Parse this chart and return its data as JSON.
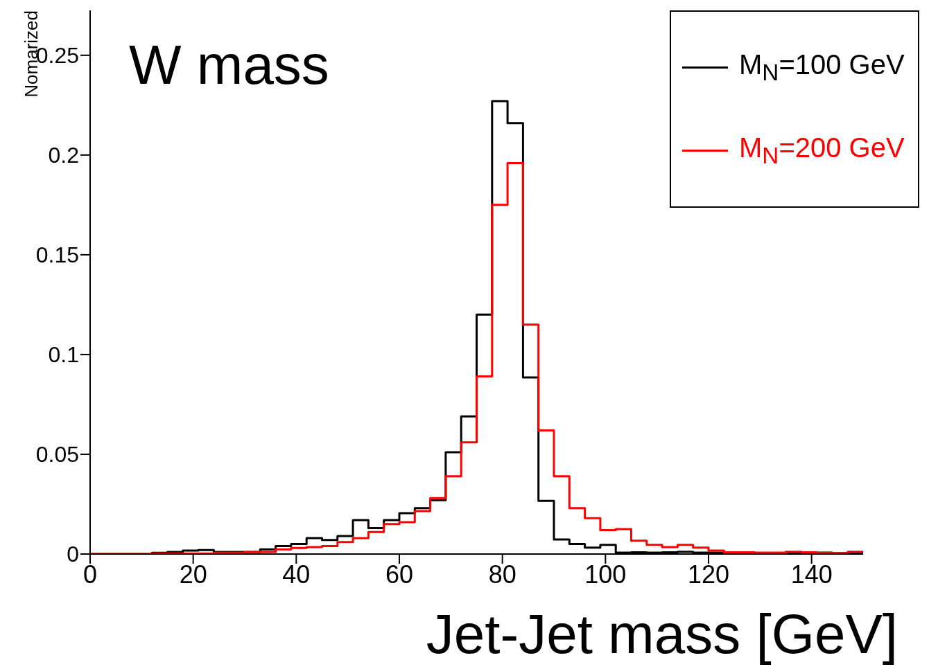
{
  "chart_data": {
    "type": "histogram",
    "title": "W mass",
    "xlabel": "Jet-Jet mass [GeV]",
    "ylabel": "Nomarized",
    "bins": [
      0,
      3,
      6,
      9,
      12,
      15,
      18,
      21,
      24,
      27,
      30,
      33,
      36,
      39,
      42,
      45,
      48,
      51,
      54,
      57,
      60,
      63,
      66,
      69,
      72,
      75,
      78,
      81,
      84,
      87,
      90,
      93,
      96,
      99,
      102,
      105,
      108,
      111,
      114,
      117,
      120,
      123,
      126,
      129,
      132,
      135,
      138,
      141,
      144,
      147,
      150
    ],
    "series": [
      {
        "name": "M$_{N}$=100 GeV",
        "color": "#000000",
        "values": [
          0,
          0,
          0,
          0,
          0.0006,
          0.001,
          0.0017,
          0.002,
          0.001,
          0.001,
          0.001,
          0.0023,
          0.004,
          0.005,
          0.008,
          0.007,
          0.009,
          0.017,
          0.013,
          0.017,
          0.0205,
          0.023,
          0.027,
          0.051,
          0.069,
          0.12,
          0.227,
          0.216,
          0.0885,
          0.0266,
          0.0073,
          0.005,
          0.0032,
          0.0046,
          0.0007,
          0.0009,
          0.0007,
          0.0009,
          0.0011,
          0.0007,
          0.0007,
          0.0005,
          0.0005,
          0.0005,
          0.0005,
          0.0005,
          0.0005,
          0.0007,
          0.0003,
          0.0003
        ]
      },
      {
        "name": "M$_{N}$=200 GeV",
        "color": "#ff0000",
        "values": [
          0,
          0,
          0,
          0,
          0.0003,
          0.0003,
          0.0003,
          0.0003,
          0.0006,
          0.0006,
          0.001,
          0.001,
          0.0023,
          0.003,
          0.0035,
          0.004,
          0.006,
          0.008,
          0.011,
          0.015,
          0.016,
          0.0215,
          0.028,
          0.039,
          0.056,
          0.089,
          0.175,
          0.196,
          0.115,
          0.062,
          0.039,
          0.023,
          0.018,
          0.012,
          0.0125,
          0.0067,
          0.0046,
          0.0035,
          0.0046,
          0.0032,
          0.0017,
          0.0009,
          0.0009,
          0.0007,
          0.0007,
          0.0011,
          0.0009,
          0.0005,
          0.0005,
          0.0011
        ]
      }
    ],
    "xlim": [
      0,
      150
    ],
    "xticks": [
      0,
      20,
      40,
      60,
      80,
      100,
      120,
      140
    ],
    "ylim": [
      0,
      0.2725
    ],
    "yticks": [
      0,
      0.05,
      0.1,
      0.15,
      0.2,
      0.25
    ],
    "grid": false,
    "legend": "top right"
  }
}
